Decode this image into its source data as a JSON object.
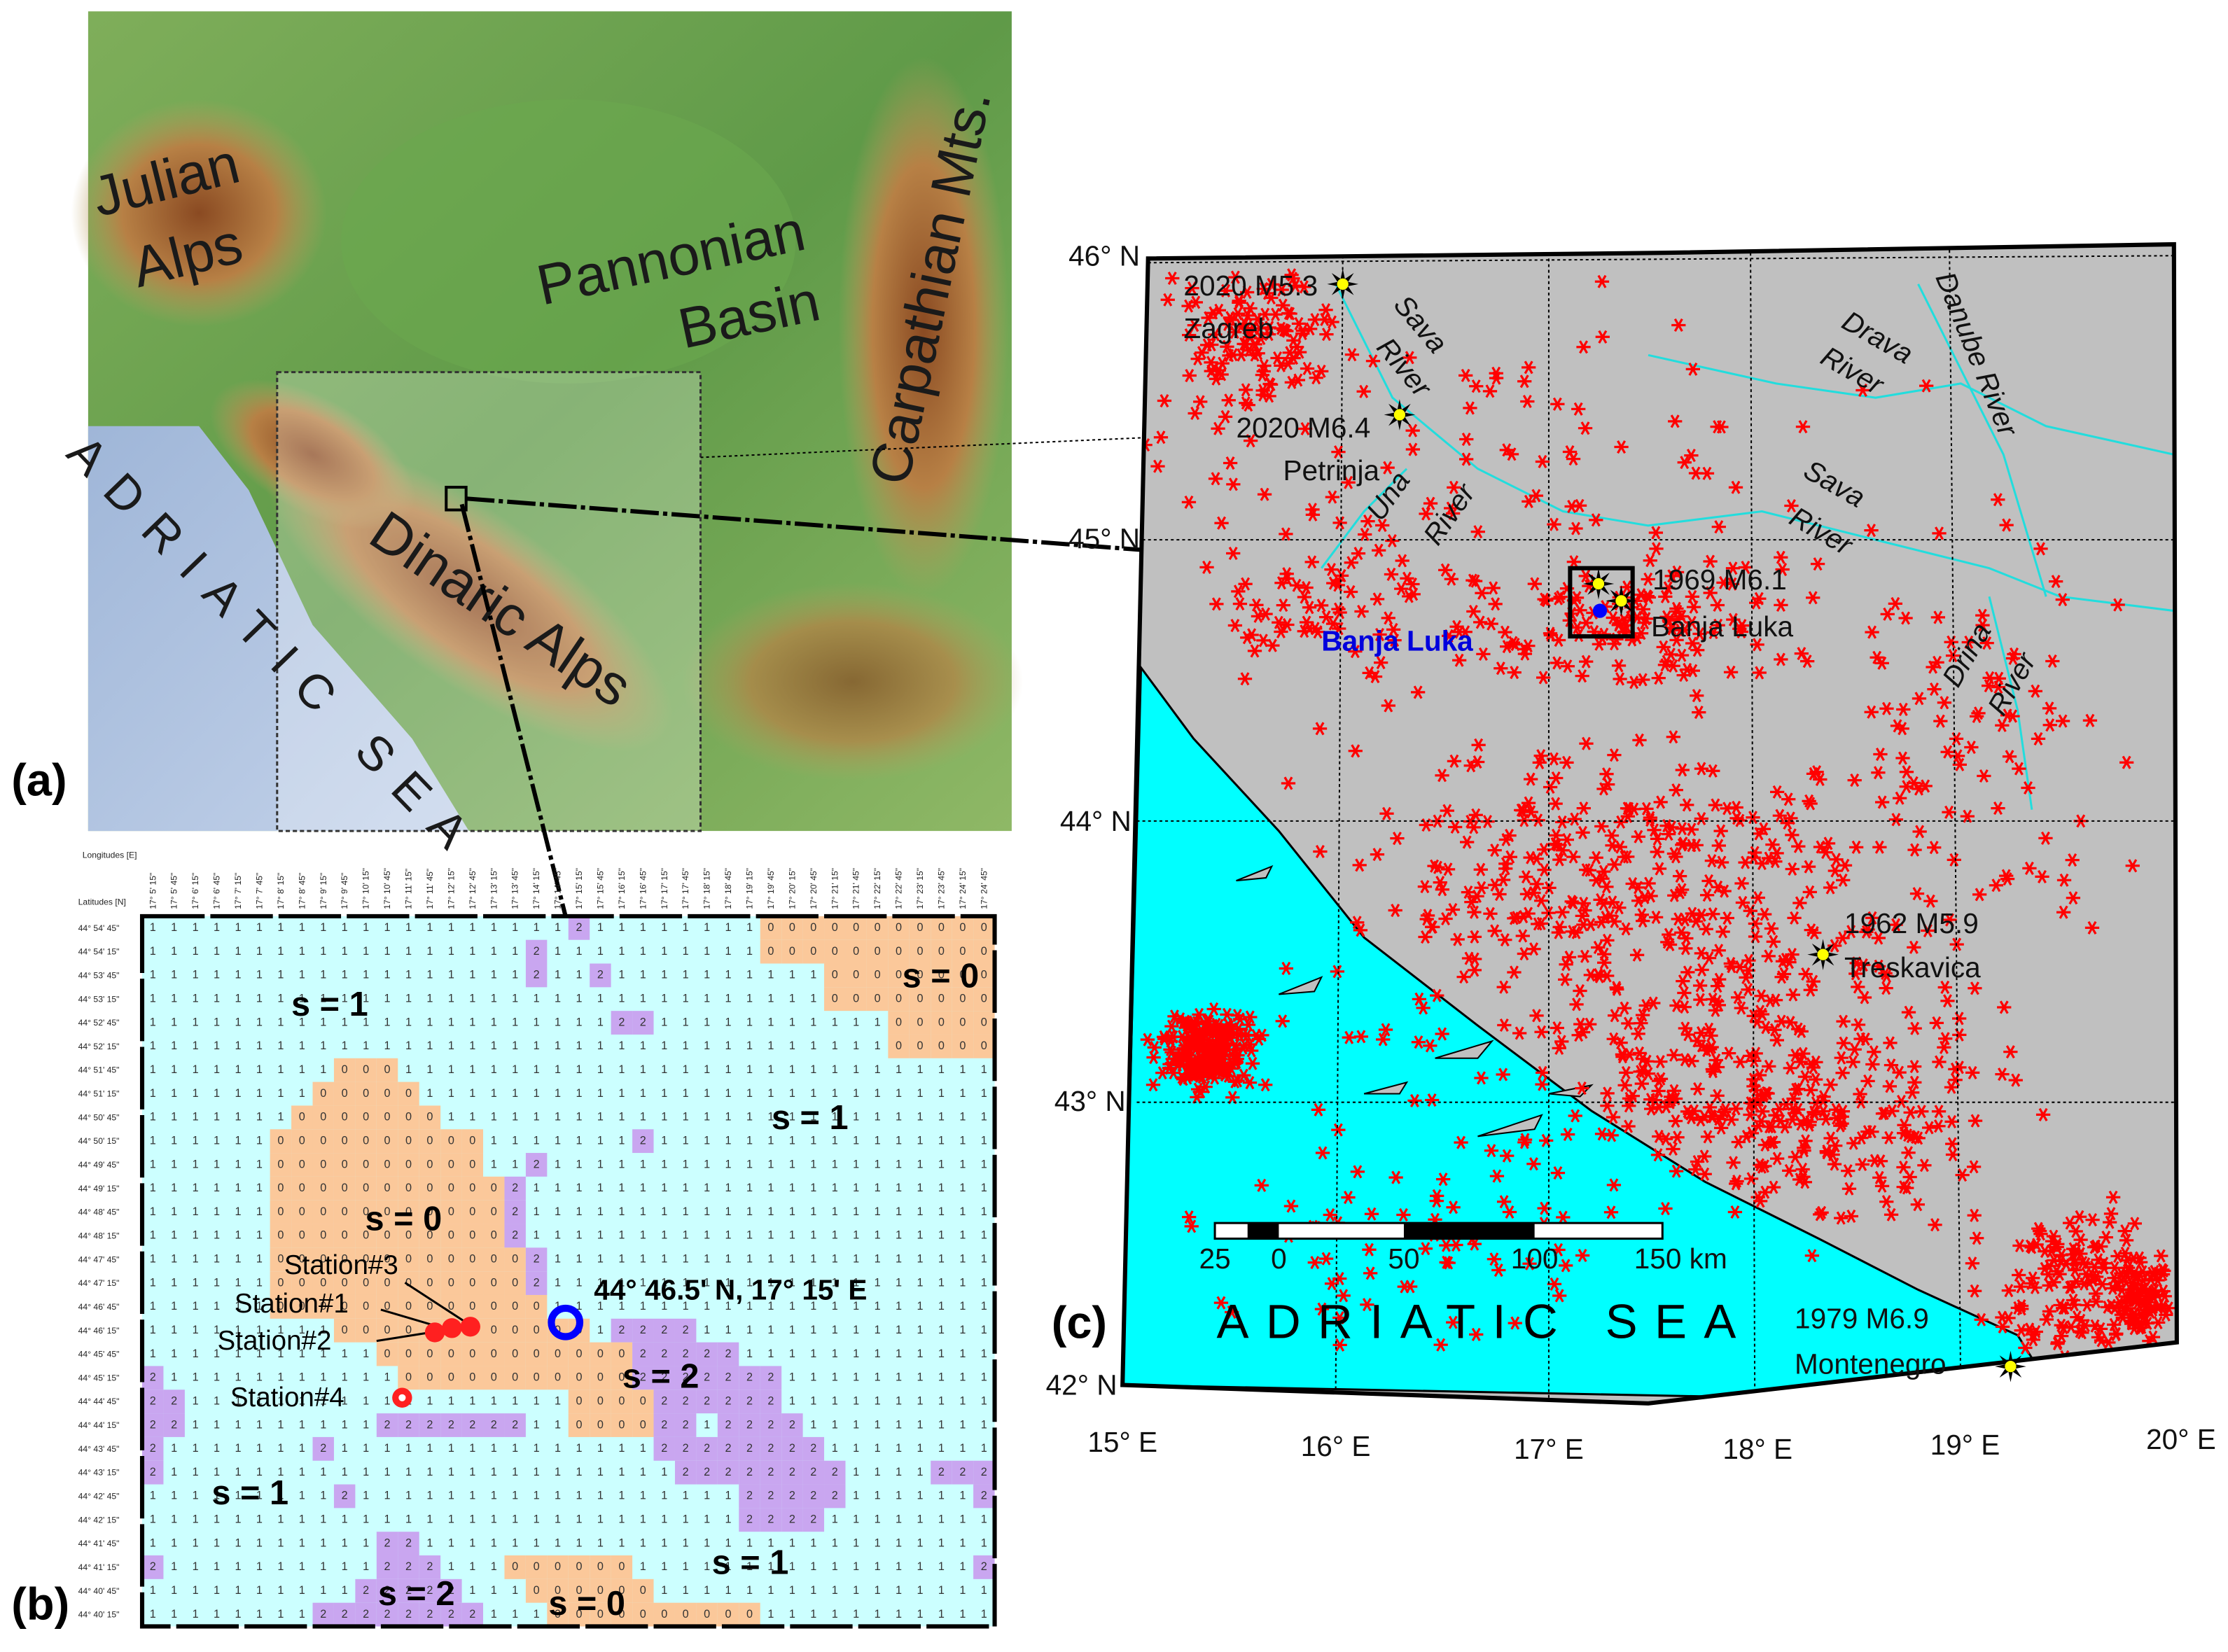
{
  "panel_a": {
    "label": "(a)",
    "julian": "Julian",
    "alps": "Alps",
    "pannonian": "Pannonian",
    "basin": "Basin",
    "carpathian": "Carpathian Mts.",
    "sea": "ADRIATIC SEA",
    "dinaric": "Dinaric Alps"
  },
  "panel_b": {
    "label": "(b)",
    "lon_header": "Longitudes [E]",
    "lat_header": "Latitudes [N]",
    "longitudes": [
      "17° 5' 15\"",
      "17° 5' 45\"",
      "17° 6' 15\"",
      "17° 6' 45\"",
      "17° 7' 15\"",
      "17° 7' 45\"",
      "17° 8' 15\"",
      "17° 8' 45\"",
      "17° 9' 15\"",
      "17° 9' 45\"",
      "17° 10' 15\"",
      "17° 10' 45\"",
      "17° 11' 15\"",
      "17° 11' 45\"",
      "17° 12' 15\"",
      "17° 12' 45\"",
      "17° 13' 15\"",
      "17° 13' 45\"",
      "17° 14' 15\"",
      "17° 14' 45\"",
      "17° 15' 15\"",
      "17° 15' 45\"",
      "17° 16' 15\"",
      "17° 16' 45\"",
      "17° 17' 15\"",
      "17° 17' 45\"",
      "17° 18' 15\"",
      "17° 18' 45\"",
      "17° 19' 15\"",
      "17° 19' 45\"",
      "17° 20' 15\"",
      "17° 20' 45\"",
      "17° 21' 15\"",
      "17° 21' 45\"",
      "17° 22' 15\"",
      "17° 22' 45\"",
      "17° 23' 15\"",
      "17° 23' 45\"",
      "17° 24' 15\"",
      "17° 24' 45\""
    ],
    "latitudes": [
      "44° 54' 45\"",
      "44° 54' 15\"",
      "44° 53' 45\"",
      "44° 53' 15\"",
      "44° 52' 45\"",
      "44° 52' 15\"",
      "44° 51' 45\"",
      "44° 51' 15\"",
      "44° 50' 45\"",
      "44° 50' 15\"",
      "44° 49' 45\"",
      "44° 49' 15\"",
      "44° 48' 45\"",
      "44° 48' 15\"",
      "44° 47' 45\"",
      "44° 47' 15\"",
      "44° 46' 45\"",
      "44° 46' 15\"",
      "44° 45' 45\"",
      "44° 45' 15\"",
      "44° 44' 45\"",
      "44° 44' 15\"",
      "44° 43' 45\"",
      "44° 43' 15\"",
      "44° 42' 45\"",
      "44° 42' 15\"",
      "44° 41' 45\"",
      "44° 41' 15\"",
      "44° 40' 45\"",
      "44° 40' 15\""
    ],
    "grid": [
      "1111111111111111111121111111100000000000",
      "1111111111111111112111111111100000000000",
      "1111111111111111112112111111111100000000",
      "1111111111111111111111111111111100000000",
      "1111111111111111111111221111111111100000",
      "1111111111111111111111111111111111100000",
      "1111111110001111111111111111111111111111",
      "1111111100000111111111111111111111111111",
      "1111111000000011111111111111111111111111",
      "1111110000000000111111121111111111111111",
      "1111110000000000112111111111111111111111",
      "1111110000000000021111111111111111111111",
      "1111110000000000021111111111111111111111",
      "1111110000000000021111111111111111111111",
      "1111110000000000002111111111111111111111",
      "1111110000000000002111111111111111111111",
      "1111110000000000000111111111111111111111",
      "1111111110000000000001222211111111111111",
      "1111111111100000000000022222111111111111",
      "2111111111110000000000022222221111111111",
      "2211111111111111111100002222221111111111",
      "2211111111122222221100002212222111111111",
      "2111111121111111111111112222222211111111",
      "2111111111111111111111111222222221111222",
      "1111111112111111111111111111222221111112",
      "1111111111111111111111111111222211111111",
      "1111111111122111111111111111111111111111",
      "2111111111122211100000011111111111111112",
      "1111111111222221110000001111111111111111",
      "1111111122222222111000000000011111111111"
    ],
    "regions": [
      "s = 1",
      "s = 0",
      "s = 1",
      "s = 0",
      "s = 2",
      "s = 1",
      "s = 1",
      "s = 2",
      "s = 0"
    ],
    "stations": [
      "Station#3",
      "Station#1",
      "Station#2",
      "Station#4"
    ],
    "site": "44° 46.5' N, 17° 15' E"
  },
  "panel_c": {
    "label": "(c)",
    "latitudes": [
      "46° N",
      "45° N",
      "44° N",
      "43° N",
      "42° N"
    ],
    "longitudes": [
      "15° E",
      "16° E",
      "17° E",
      "18° E",
      "19° E",
      "20° E"
    ],
    "events": [
      {
        "name": "2020 M5.3",
        "place": "Zagreb"
      },
      {
        "name": "2020 M6.4",
        "place": "Petrinja"
      },
      {
        "name": "1969 M6.1",
        "place": "Banja Luka"
      },
      {
        "name": "1962 M5.9",
        "place": "Treskavica"
      },
      {
        "name": "1979 M6.9",
        "place": "Montenegro"
      }
    ],
    "rivers": [
      "Sava",
      "River",
      "Drava",
      "River",
      "Danube River",
      "Una",
      "River",
      "Sava",
      "River",
      "Drina",
      "River"
    ],
    "city": "Banja Luka",
    "sea": "ADRIATIC SEA",
    "scale": [
      "25",
      "0",
      "50",
      "100",
      "150 km"
    ]
  }
}
